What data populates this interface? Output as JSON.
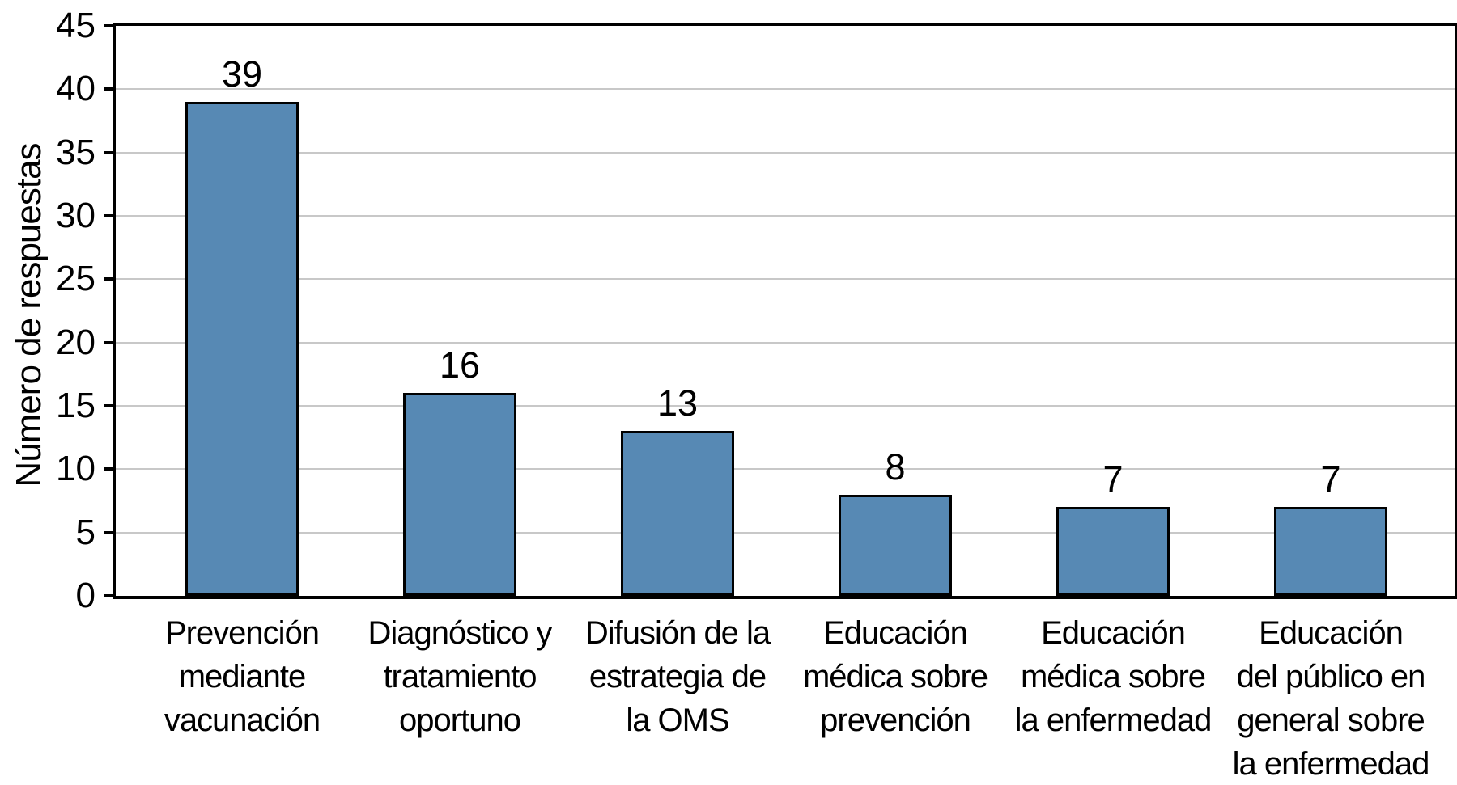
{
  "chart_data": {
    "type": "bar",
    "title": "",
    "xlabel": "",
    "ylabel": "Número de respuestas",
    "ylim": [
      0,
      45
    ],
    "yticks": [
      0,
      5,
      10,
      15,
      20,
      25,
      30,
      35,
      40,
      45
    ],
    "grid": "horizontal-only",
    "legend_position": "none",
    "categories": [
      "Prevención mediante vacunación",
      "Diagnóstico y tratamiento oportuno",
      "Difusión de la estrategia de la OMS",
      "Educación médica sobre prevención",
      "Educación médica sobre la enfermedad",
      "Educación del público en general sobre la enfermedad"
    ],
    "category_display_lines": [
      [
        "Prevención",
        "mediante",
        "vacunación"
      ],
      [
        "Diagnóstico y",
        "tratamiento",
        "oportuno"
      ],
      [
        "Difusión de la",
        "estrategia de",
        "la OMS"
      ],
      [
        "Educación",
        "médica sobre",
        "prevención"
      ],
      [
        "Educación",
        "médica sobre",
        "la enfermedad"
      ],
      [
        "Educación",
        "del público en",
        "general sobre",
        "la enfermedad"
      ]
    ],
    "values": [
      39,
      16,
      13,
      8,
      7,
      7
    ],
    "value_labels": [
      "39",
      "16",
      "13",
      "8",
      "7",
      "7"
    ],
    "colors": {
      "bar_fill": "#5789b4",
      "bar_border": "#000000",
      "axis": "#000000",
      "gridline": "#c8c8c8",
      "background": "#ffffff",
      "text": "#000000"
    }
  }
}
